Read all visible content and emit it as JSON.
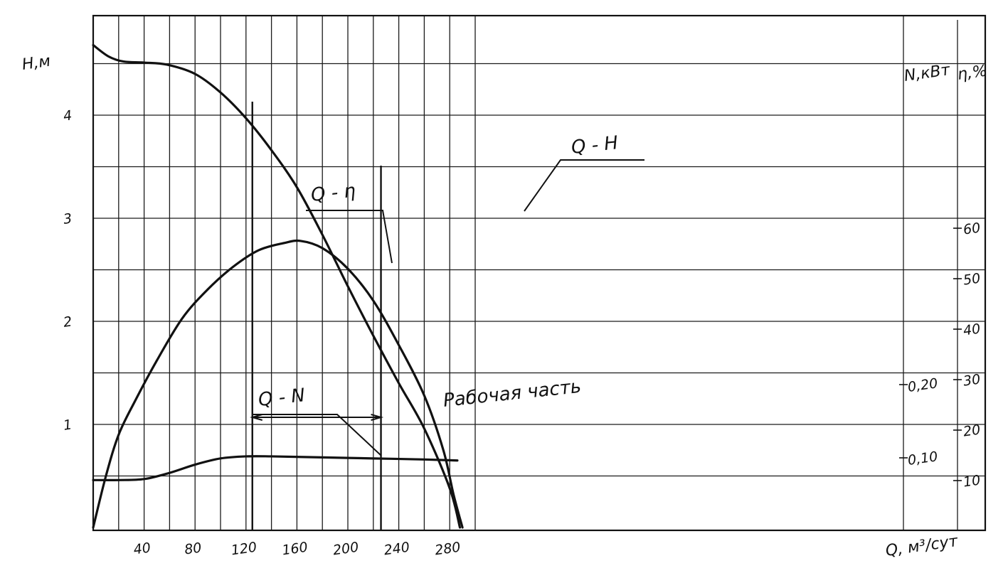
{
  "chart_data": {
    "type": "line",
    "x": {
      "label": "Q, м³/сут",
      "ticks": [
        40,
        80,
        120,
        160,
        200,
        240,
        280
      ],
      "range": [
        0,
        320
      ]
    },
    "y_left": {
      "label": "H,м",
      "ticks": [
        1,
        2,
        3,
        4
      ],
      "range": [
        0,
        4.7
      ]
    },
    "y_power": {
      "label": "N,кВт",
      "ticks": [
        "0,10",
        "0,20"
      ],
      "tick_values": [
        0.1,
        0.2
      ]
    },
    "y_efficiency": {
      "label": "η,%",
      "ticks": [
        10,
        20,
        30,
        40,
        50,
        60
      ]
    },
    "series": [
      {
        "name": "Q-H",
        "axis": "H",
        "points": [
          [
            0,
            4.68
          ],
          [
            12,
            4.57
          ],
          [
            24,
            4.52
          ],
          [
            40,
            4.51
          ],
          [
            58,
            4.49
          ],
          [
            80,
            4.4
          ],
          [
            100,
            4.22
          ],
          [
            120,
            3.97
          ],
          [
            140,
            3.66
          ],
          [
            160,
            3.3
          ],
          [
            180,
            2.84
          ],
          [
            200,
            2.34
          ],
          [
            220,
            1.86
          ],
          [
            240,
            1.4
          ],
          [
            260,
            0.96
          ],
          [
            280,
            0.38
          ],
          [
            288,
            0.0
          ]
        ]
      },
      {
        "name": "Q-η",
        "axis": "H",
        "points": [
          [
            0,
            0.0
          ],
          [
            10,
            0.5
          ],
          [
            20,
            0.9
          ],
          [
            33,
            1.23
          ],
          [
            50,
            1.62
          ],
          [
            70,
            2.03
          ],
          [
            90,
            2.31
          ],
          [
            110,
            2.53
          ],
          [
            130,
            2.69
          ],
          [
            150,
            2.76
          ],
          [
            163,
            2.78
          ],
          [
            180,
            2.71
          ],
          [
            200,
            2.51
          ],
          [
            220,
            2.2
          ],
          [
            240,
            1.77
          ],
          [
            260,
            1.28
          ],
          [
            275,
            0.75
          ],
          [
            283,
            0.32
          ],
          [
            290,
            0.0
          ]
        ]
      },
      {
        "name": "Q-N",
        "axis": "H",
        "points": [
          [
            0,
            0.46
          ],
          [
            20,
            0.46
          ],
          [
            40,
            0.47
          ],
          [
            60,
            0.53
          ],
          [
            80,
            0.61
          ],
          [
            100,
            0.67
          ],
          [
            120,
            0.69
          ],
          [
            140,
            0.69
          ],
          [
            180,
            0.68
          ],
          [
            220,
            0.67
          ],
          [
            260,
            0.66
          ],
          [
            286,
            0.65
          ]
        ]
      }
    ],
    "labels": {
      "qh": "Q - H",
      "qeta": "Q - η",
      "qn": "Q - N",
      "working": "Рабочая  часть"
    },
    "working_range": [
      125,
      226
    ],
    "grid": true
  }
}
